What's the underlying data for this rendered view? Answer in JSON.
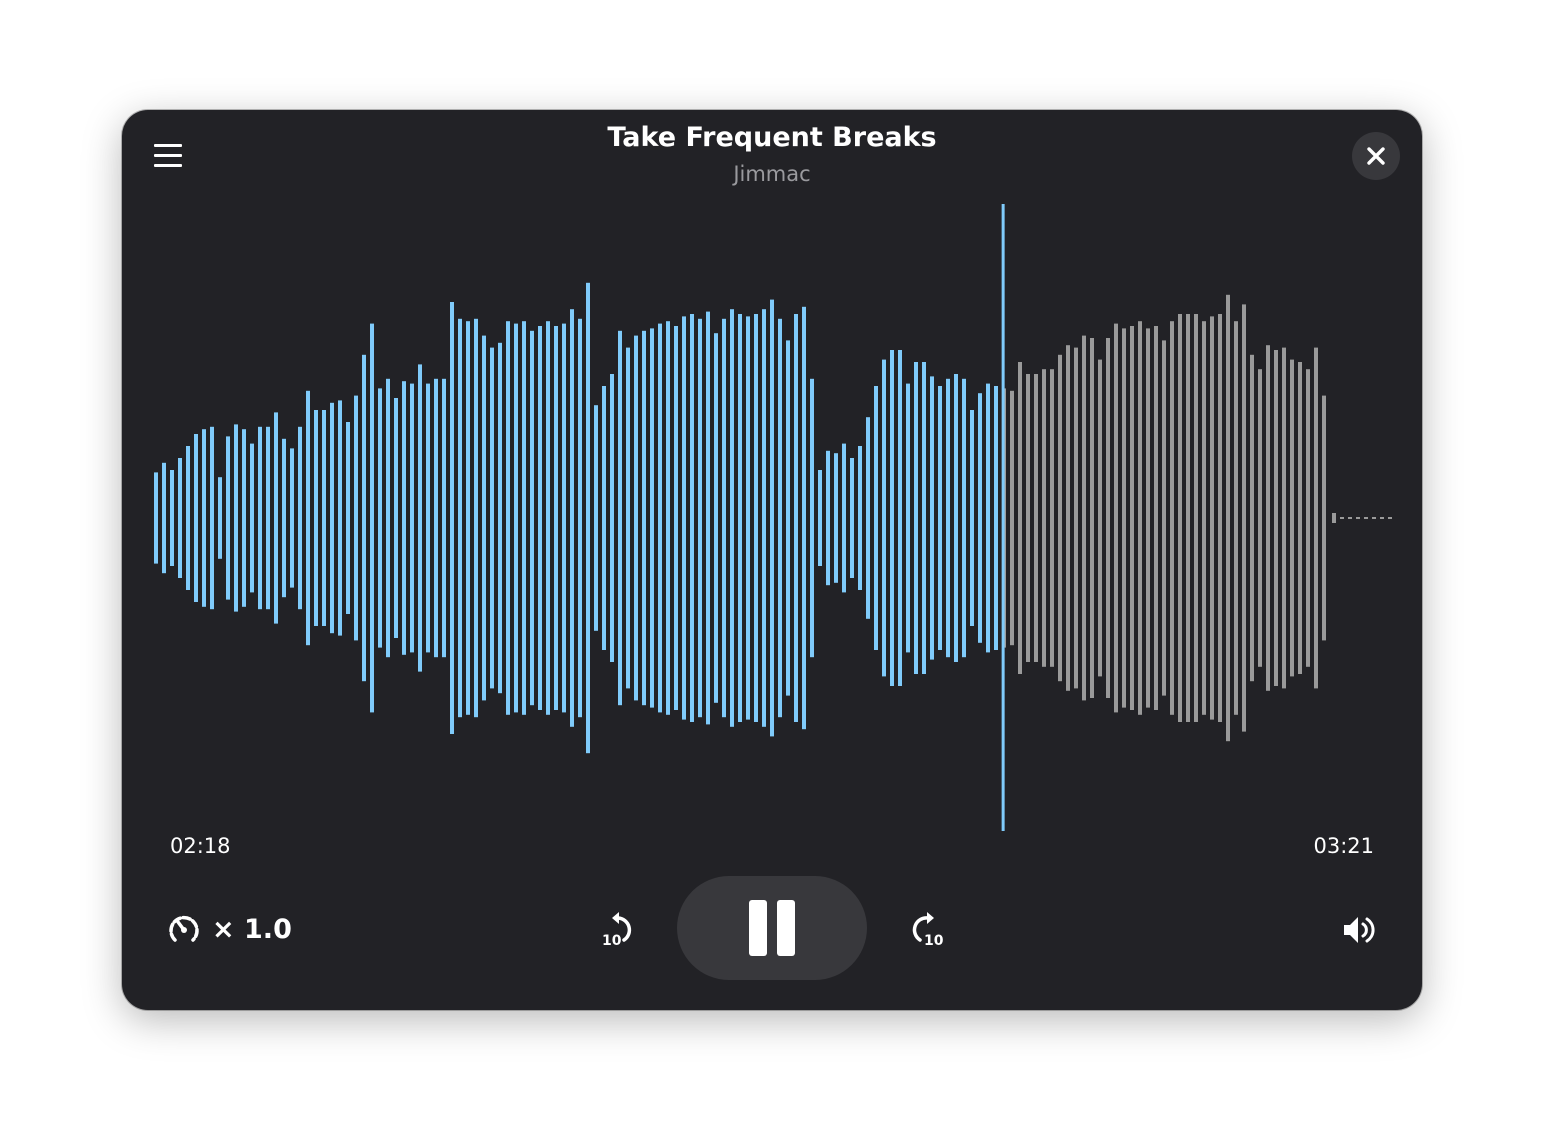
{
  "header": {
    "title": "Take Frequent Breaks",
    "artist": "Jimmac",
    "menu_icon": "hamburger-menu-icon",
    "close_icon": "close-icon"
  },
  "playback": {
    "elapsed": "02:18",
    "duration": "03:21",
    "progress": 0.687,
    "state": "playing"
  },
  "controls": {
    "speed_label": "× 1.0",
    "rewind_seconds": "10",
    "forward_seconds": "10",
    "icons": [
      "speedometer-icon",
      "rewind-10-icon",
      "pause-icon",
      "forward-10-icon",
      "volume-high-icon"
    ]
  },
  "colors": {
    "background": "#222226",
    "played": "#80cbfa",
    "unplayed": "#9a9a9a",
    "button": "#38383c"
  },
  "waveform_peaks_percent": [
    19,
    23,
    20,
    25,
    30,
    35,
    37,
    38,
    17,
    34,
    39,
    37,
    31,
    38,
    38,
    44,
    33,
    29,
    38,
    53,
    45,
    45,
    48,
    49,
    40,
    51,
    68,
    81,
    54,
    58,
    50,
    57,
    56,
    64,
    56,
    58,
    58,
    90,
    83,
    82,
    83,
    76,
    71,
    73,
    82,
    81,
    82,
    78,
    80,
    82,
    80,
    81,
    87,
    83,
    98,
    47,
    55,
    60,
    78,
    71,
    76,
    78,
    79,
    81,
    82,
    80,
    84,
    85,
    83,
    86,
    77,
    83,
    87,
    85,
    84,
    85,
    87,
    91,
    83,
    74,
    85,
    88,
    58,
    20,
    28,
    27,
    31,
    25,
    30,
    42,
    55,
    66,
    70,
    70,
    56,
    65,
    65,
    59,
    55,
    58,
    60,
    58,
    45,
    52,
    56,
    55,
    54,
    53,
    65,
    60,
    60,
    62,
    62,
    68,
    72,
    71,
    76,
    75,
    66,
    75,
    81,
    79,
    80,
    82,
    79,
    80,
    74,
    82,
    85,
    85,
    85,
    82,
    84,
    85,
    93,
    82,
    89,
    68,
    62,
    72,
    70,
    71,
    66,
    65,
    62,
    71,
    51
  ]
}
